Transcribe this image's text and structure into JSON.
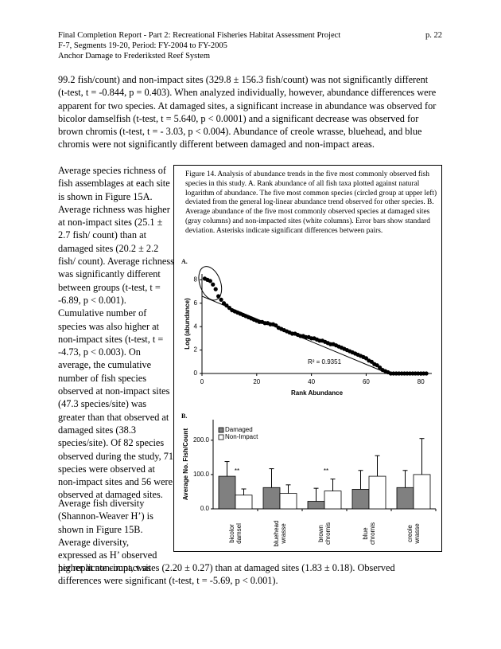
{
  "header": {
    "lines": [
      "Final Completion Report - Part 2: Recreational Fisheries Habitat Assessment Project",
      "F-7, Segments 19-20, Period: FY-2004 to FY-2005",
      "Anchor Damage to Frederiksted Reef System"
    ],
    "page": "p. 22"
  },
  "paragraphs": [
    "99.2 fish/count) and non-impact sites (329.8 ± 156.3 fish/count) was not significantly different (t-test, t = -0.844, p = 0.403).  When analyzed individually, however, abundance differences were apparent for two species.  At damaged sites, a significant increase in abundance was observed for bicolor damselfish (t-test, t = 5.640, p < 0.0001) and a significant decrease was observed for brown chromis (t-test, t = - 3.03, p < 0.004).  Abundance of creole wrasse, bluehead, and blue chromis were not significantly different between damaged and non-impact areas.",
    "Average species richness of fish assemblages at each site is shown in Figure 15A.  Average richness was higher at non-impact sites (25.1 ± 2.7 fish/ count) than at damaged sites (20.2 ± 2.2 fish/ count).  Average richness was significantly different between groups (t-test, t = -6.89, p < 0.001). Cumulative number of species was also higher at non-impact sites (t-test, t = -4.73, p < 0.003).  On average, the cumulative number of fish species observed at non-impact sites (47.3 species/site) was greater than that observed at damaged sites (38.3 species/site).  Of 82 species observed during the study, 71 species were observed at non-impact sites and 56 were observed at damaged sites.",
    "Average fish diversity (Shannon-Weaver H’) is shown in Figure 15B. Average diversity, expressed as H’ observed per replicate count, was",
    "higher at non-impact sites (2.20 ± 0.27) than at damaged sites (1.83 ± 0.18).  Observed differences were significant (t-test, t = -5.69, p < 0.001)."
  ],
  "figure": {
    "caption": "Figure 14.  Analysis of abundance trends in the five most commonly observed fish species in this study.  A. Rank abundance of all fish taxa plotted against natural logarithm of abundance.  The five most common species (circled group at upper left) deviated from the general log-linear abundance trend observed for other species.  B. Average abundance of the five most commonly observed species at damaged sites (gray columns) and non-impacted sites (white columns).  Error bars show standard deviation.  Asterisks indicate significant differences between pairs."
  },
  "chart_data": [
    {
      "type": "scatter",
      "label": "A.",
      "x_label": "Rank Abundance",
      "y_label": "Log (abundance)",
      "annotation": "R² = 0.9351",
      "color": "#000000",
      "x": [
        1,
        2,
        3,
        4,
        5,
        6,
        7,
        8,
        9,
        10,
        11,
        12,
        13,
        14,
        15,
        16,
        17,
        18,
        19,
        20,
        21,
        22,
        23,
        24,
        25,
        26,
        27,
        28,
        29,
        30,
        31,
        32,
        33,
        34,
        35,
        36,
        37,
        38,
        39,
        40,
        41,
        42,
        43,
        44,
        45,
        46,
        47,
        48,
        49,
        50,
        51,
        52,
        53,
        54,
        55,
        56,
        57,
        58,
        59,
        60,
        61,
        62,
        63,
        64,
        65,
        66,
        67,
        68,
        69,
        70,
        71,
        72,
        73,
        74,
        75,
        76,
        77,
        78,
        79,
        80,
        81,
        82
      ],
      "values": [
        8.1,
        8.0,
        7.9,
        7.6,
        7.2,
        6.6,
        6.3,
        6.0,
        5.8,
        5.6,
        5.4,
        5.3,
        5.2,
        5.1,
        5.0,
        4.9,
        4.8,
        4.7,
        4.6,
        4.5,
        4.4,
        4.4,
        4.3,
        4.3,
        4.2,
        4.2,
        4.1,
        3.9,
        3.8,
        3.7,
        3.6,
        3.5,
        3.4,
        3.4,
        3.3,
        3.2,
        3.2,
        3.1,
        3.1,
        3.0,
        3.0,
        2.9,
        2.8,
        2.8,
        2.7,
        2.6,
        2.5,
        2.5,
        2.4,
        2.3,
        2.2,
        2.1,
        2.0,
        1.9,
        1.8,
        1.7,
        1.6,
        1.5,
        1.4,
        1.3,
        1.1,
        1.0,
        0.8,
        0.7,
        0.5,
        0.3,
        0.2,
        0.1,
        0,
        0,
        0,
        0,
        0,
        0,
        0,
        0,
        0,
        0,
        0,
        0,
        0,
        0
      ],
      "trendline": {
        "x": [
          0,
          68
        ],
        "values": [
          6.6,
          0
        ]
      },
      "xlim": [
        0,
        84
      ],
      "xticks": [
        0,
        20,
        40,
        60,
        80
      ],
      "ylim": [
        0,
        8.5
      ],
      "yticks": [
        0,
        2,
        4,
        6,
        8
      ]
    },
    {
      "type": "bar",
      "label": "B.",
      "y_label": "Average No. Fish/Count",
      "categories": [
        "bicolor damsel",
        "bluehead wrasse",
        "brown chromis",
        "blue chromis",
        "creole wrasse"
      ],
      "series": [
        {
          "name": "Damaged",
          "color": "#808080",
          "values": [
            95,
            62,
            22,
            57,
            62
          ],
          "errors": [
            43,
            55,
            38,
            55,
            50
          ]
        },
        {
          "name": "Non-Impact",
          "color": "#ffffff",
          "values": [
            40,
            45,
            52,
            95,
            100
          ],
          "errors": [
            18,
            25,
            35,
            60,
            105
          ]
        }
      ],
      "annotations": [
        "**",
        "**"
      ],
      "legend": "upper-left",
      "ylim": [
        0,
        260
      ],
      "yticks": [
        {
          "value": 0,
          "label": "0.0"
        },
        {
          "value": 100,
          "label": "100.0"
        },
        {
          "value": 200,
          "label": "200.0"
        }
      ]
    }
  ]
}
